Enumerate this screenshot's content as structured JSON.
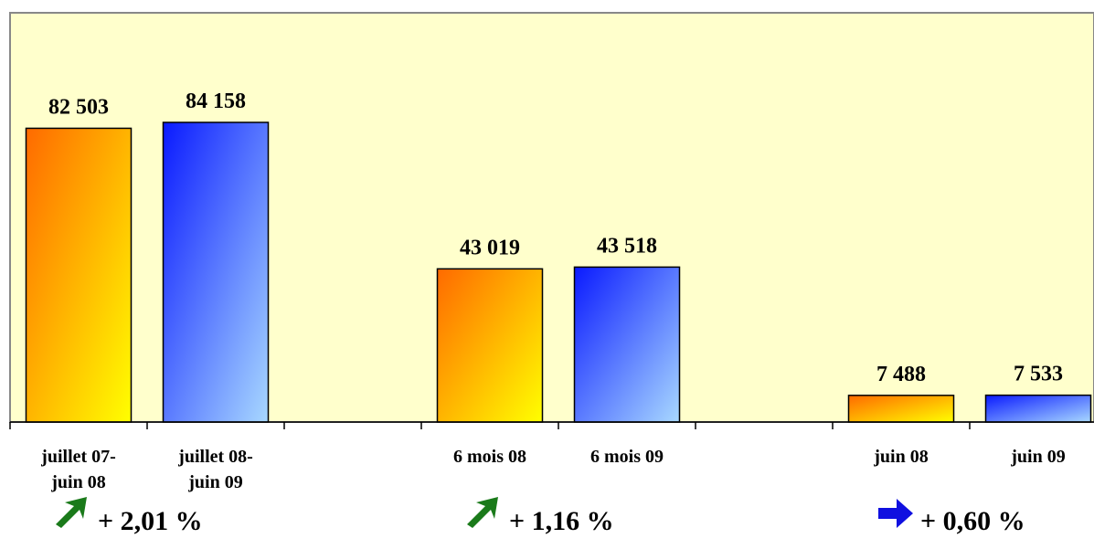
{
  "chart_data": {
    "type": "bar",
    "groups": [
      {
        "bars": [
          {
            "label": [
              "juillet 07-",
              "juin 08"
            ],
            "value": 82503,
            "value_text": "82 503",
            "color_scheme": "orange-yellow"
          },
          {
            "label": [
              "juillet 08-",
              "juin 09"
            ],
            "value": 84158,
            "value_text": "84 158",
            "color_scheme": "blue-lightblue"
          }
        ],
        "change": {
          "text": "+ 2,01 %",
          "icon": "arrow-up-right-icon",
          "icon_color": "#1a7a1a"
        }
      },
      {
        "bars": [
          {
            "label": [
              "6 mois 08"
            ],
            "value": 43019,
            "value_text": "43 019",
            "color_scheme": "orange-yellow"
          },
          {
            "label": [
              "6 mois 09"
            ],
            "value": 43518,
            "value_text": "43 518",
            "color_scheme": "blue-lightblue"
          }
        ],
        "change": {
          "text": "+ 1,16 %",
          "icon": "arrow-up-right-icon",
          "icon_color": "#1a7a1a"
        }
      },
      {
        "bars": [
          {
            "label": [
              "juin 08"
            ],
            "value": 7488,
            "value_text": "7 488",
            "color_scheme": "orange-yellow"
          },
          {
            "label": [
              "juin 09"
            ],
            "value": 7533,
            "value_text": "7 533",
            "color_scheme": "blue-lightblue"
          }
        ],
        "change": {
          "text": "+ 0,60 %",
          "icon": "arrow-right-icon",
          "icon_color": "#1010e0"
        }
      }
    ],
    "ylim": [
      0,
      100000
    ],
    "grid": false,
    "legend": "none",
    "plot_background": "#ffffcc",
    "colors": {
      "orange_start": "#ff6a00",
      "orange_end": "#ffff00",
      "blue_start": "#0a1aff",
      "blue_end": "#a8d8ff"
    }
  }
}
